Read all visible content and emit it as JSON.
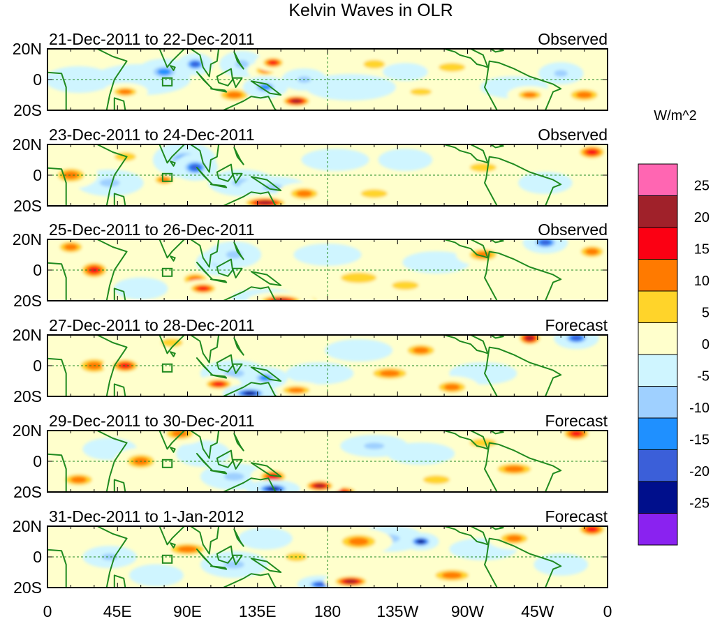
{
  "chart_data": {
    "type": "heatmap",
    "title": "Kelvin Waves in OLR",
    "units_label": "W/m^2",
    "x_axis": {
      "ticks": [
        {
          "lon": 0,
          "label": "0"
        },
        {
          "lon": 45,
          "label": "45E"
        },
        {
          "lon": 90,
          "label": "90E"
        },
        {
          "lon": 135,
          "label": "135E"
        },
        {
          "lon": 180,
          "label": "180"
        },
        {
          "lon": 225,
          "label": "135W"
        },
        {
          "lon": 270,
          "label": "90W"
        },
        {
          "lon": 315,
          "label": "45W"
        },
        {
          "lon": 360,
          "label": "0"
        }
      ],
      "range": [
        0,
        360
      ]
    },
    "y_axis": {
      "ticks": [
        {
          "lat": 20,
          "label": "20N"
        },
        {
          "lat": 0,
          "label": "0"
        },
        {
          "lat": -20,
          "label": "20S"
        }
      ],
      "range": [
        -20,
        20
      ]
    },
    "colorbar": {
      "levels": [
        "25",
        "20",
        "15",
        "10",
        "5",
        "0",
        "-5",
        "-10",
        "-15",
        "-20",
        "-25"
      ],
      "colors": [
        "#ff66b2",
        "#a0212a",
        "#fb0013",
        "#ff7a00",
        "#ffd42a",
        "#ffffcc",
        "#cff5ff",
        "#9fd0ff",
        "#1f90ff",
        "#3b5fd9",
        "#000f8c",
        "#8a22f0"
      ]
    },
    "panels": [
      {
        "date_range": "21-Dec-2011 to 22-Dec-2011",
        "status": "Observed",
        "blobs": [
          [
            75,
            5,
            12,
            6,
            -15
          ],
          [
            95,
            10,
            8,
            5,
            -20
          ],
          [
            60,
            0,
            22,
            7,
            -5
          ],
          [
            20,
            0,
            15,
            6,
            -5
          ],
          [
            125,
            10,
            10,
            6,
            -10
          ],
          [
            140,
            -5,
            10,
            5,
            -15
          ],
          [
            165,
            0,
            10,
            5,
            -10
          ],
          [
            50,
            -8,
            10,
            4,
            10
          ],
          [
            120,
            -10,
            12,
            5,
            10
          ],
          [
            160,
            -14,
            10,
            4,
            20
          ],
          [
            140,
            6,
            8,
            4,
            10
          ],
          [
            145,
            11,
            8,
            4,
            15
          ],
          [
            210,
            10,
            12,
            5,
            5
          ],
          [
            260,
            8,
            15,
            5,
            5
          ],
          [
            300,
            -5,
            15,
            5,
            -5
          ],
          [
            330,
            4,
            10,
            5,
            -10
          ],
          [
            240,
            -8,
            12,
            4,
            5
          ],
          [
            310,
            -10,
            10,
            4,
            10
          ],
          [
            345,
            -10,
            12,
            5,
            10
          ],
          [
            195,
            -5,
            20,
            6,
            -5
          ],
          [
            230,
            5,
            10,
            4,
            -5
          ]
        ]
      },
      {
        "date_range": "23-Dec-2011 to 24-Dec-2011",
        "status": "Observed",
        "blobs": [
          [
            88,
            10,
            14,
            8,
            -15
          ],
          [
            95,
            5,
            10,
            6,
            -20
          ],
          [
            40,
            -5,
            15,
            6,
            -10
          ],
          [
            15,
            0,
            12,
            6,
            10
          ],
          [
            125,
            -5,
            15,
            6,
            -10
          ],
          [
            145,
            -8,
            15,
            5,
            -10
          ],
          [
            165,
            -12,
            12,
            5,
            10
          ],
          [
            140,
            -18,
            15,
            4,
            20
          ],
          [
            185,
            10,
            15,
            5,
            -5
          ],
          [
            230,
            10,
            12,
            5,
            -5
          ],
          [
            280,
            5,
            15,
            5,
            5
          ],
          [
            350,
            15,
            10,
            5,
            15
          ],
          [
            50,
            12,
            12,
            5,
            5
          ],
          [
            210,
            -12,
            15,
            5,
            5
          ],
          [
            320,
            -5,
            12,
            5,
            -5
          ],
          [
            75,
            -3,
            8,
            4,
            10
          ]
        ]
      },
      {
        "date_range": "25-Dec-2011 to 26-Dec-2011",
        "status": "Observed",
        "blobs": [
          [
            30,
            0,
            10,
            6,
            15
          ],
          [
            15,
            15,
            10,
            5,
            10
          ],
          [
            95,
            -6,
            10,
            5,
            10
          ],
          [
            100,
            -12,
            10,
            4,
            15
          ],
          [
            110,
            5,
            10,
            6,
            -10
          ],
          [
            140,
            -18,
            15,
            4,
            -15
          ],
          [
            150,
            -20,
            15,
            4,
            20
          ],
          [
            165,
            -20,
            10,
            4,
            15
          ],
          [
            120,
            10,
            12,
            6,
            -10
          ],
          [
            200,
            -5,
            20,
            6,
            5
          ],
          [
            250,
            5,
            15,
            5,
            -5
          ],
          [
            280,
            10,
            12,
            5,
            10
          ],
          [
            320,
            18,
            10,
            5,
            -20
          ],
          [
            350,
            12,
            10,
            5,
            10
          ],
          [
            60,
            -12,
            12,
            5,
            -5
          ],
          [
            180,
            10,
            15,
            5,
            -5
          ],
          [
            230,
            -10,
            15,
            5,
            5
          ]
        ]
      },
      {
        "date_range": "27-Dec-2011 to 28-Dec-2011",
        "status": "Forecast",
        "blobs": [
          [
            50,
            0,
            10,
            5,
            15
          ],
          [
            30,
            0,
            12,
            6,
            10
          ],
          [
            120,
            -5,
            15,
            6,
            -10
          ],
          [
            140,
            -8,
            10,
            5,
            -15
          ],
          [
            110,
            -12,
            10,
            4,
            15
          ],
          [
            130,
            -18,
            12,
            4,
            -25
          ],
          [
            160,
            -16,
            12,
            4,
            10
          ],
          [
            200,
            10,
            15,
            5,
            -5
          ],
          [
            240,
            10,
            12,
            5,
            10
          ],
          [
            310,
            18,
            8,
            5,
            20
          ],
          [
            340,
            18,
            10,
            5,
            -20
          ],
          [
            280,
            -5,
            15,
            5,
            -5
          ],
          [
            220,
            -5,
            15,
            5,
            10
          ],
          [
            260,
            -14,
            12,
            5,
            10
          ],
          [
            80,
            15,
            12,
            5,
            5
          ],
          [
            175,
            -5,
            15,
            5,
            -5
          ]
        ]
      },
      {
        "date_range": "29-Dec-2011 to 30-Dec-2011",
        "status": "Forecast",
        "blobs": [
          [
            60,
            0,
            12,
            6,
            10
          ],
          [
            85,
            18,
            12,
            5,
            10
          ],
          [
            20,
            -12,
            12,
            5,
            10
          ],
          [
            120,
            -10,
            15,
            6,
            -10
          ],
          [
            145,
            -10,
            10,
            5,
            15
          ],
          [
            145,
            -18,
            12,
            4,
            -25
          ],
          [
            175,
            -16,
            10,
            4,
            20
          ],
          [
            190,
            -20,
            10,
            4,
            15
          ],
          [
            210,
            10,
            15,
            5,
            -10
          ],
          [
            240,
            5,
            15,
            5,
            -5
          ],
          [
            280,
            12,
            15,
            5,
            5
          ],
          [
            340,
            18,
            10,
            5,
            15
          ],
          [
            300,
            -5,
            15,
            5,
            10
          ],
          [
            100,
            5,
            12,
            6,
            -5
          ],
          [
            40,
            8,
            12,
            5,
            -5
          ],
          [
            250,
            -12,
            15,
            5,
            5
          ]
        ]
      },
      {
        "date_range": "31-Dec-2011 to 1-Jan-2012",
        "status": "Forecast",
        "blobs": [
          [
            40,
            0,
            12,
            5,
            -10
          ],
          [
            90,
            5,
            15,
            5,
            10
          ],
          [
            120,
            -5,
            15,
            6,
            -10
          ],
          [
            175,
            -18,
            10,
            4,
            -20
          ],
          [
            195,
            -16,
            12,
            4,
            20
          ],
          [
            220,
            12,
            15,
            6,
            -10
          ],
          [
            240,
            10,
            8,
            4,
            -25
          ],
          [
            200,
            10,
            15,
            6,
            10
          ],
          [
            160,
            0,
            12,
            5,
            5
          ],
          [
            280,
            5,
            15,
            5,
            -5
          ],
          [
            300,
            12,
            12,
            5,
            10
          ],
          [
            350,
            18,
            10,
            5,
            15
          ],
          [
            260,
            -12,
            15,
            5,
            10
          ],
          [
            330,
            -5,
            12,
            5,
            -5
          ],
          [
            70,
            -12,
            12,
            5,
            -5
          ],
          [
            140,
            12,
            12,
            5,
            -5
          ]
        ]
      }
    ]
  }
}
